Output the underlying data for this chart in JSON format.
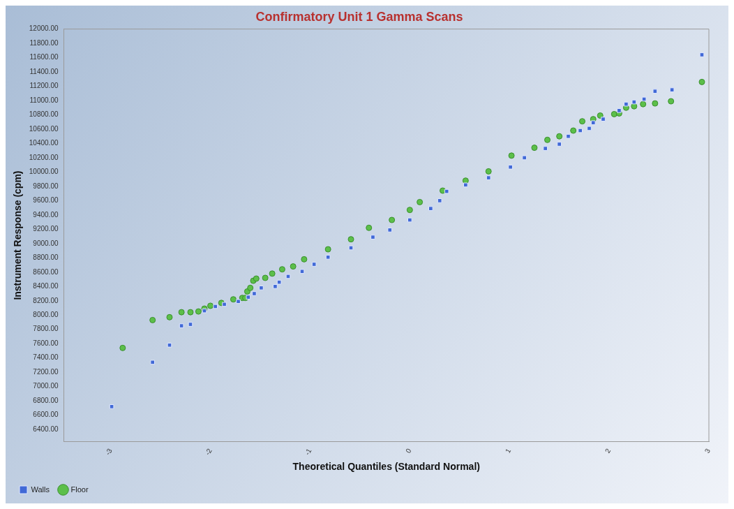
{
  "chart_data": {
    "type": "scatter",
    "title": "Confirmatory Unit 1 Gamma Scans",
    "xlabel": "Theoretical Quantiles (Standard Normal)",
    "ylabel": "Instrument Response (cpm)",
    "legend": "bottom",
    "grid": false,
    "xlim": [
      -3.47,
      3
    ],
    "xticks": [
      -3,
      -2,
      -1,
      0,
      1,
      2,
      3
    ],
    "ylim": [
      6230,
      12000
    ],
    "yticks": [
      {
        "value": 6400,
        "label": "6400.00"
      },
      {
        "value": 6600,
        "label": "6600.00"
      },
      {
        "value": 6800,
        "label": "6800.00"
      },
      {
        "value": 7000,
        "label": "7000.00"
      },
      {
        "value": 7200,
        "label": "7200.00"
      },
      {
        "value": 7400,
        "label": "7400.00"
      },
      {
        "value": 7600,
        "label": "7600.00"
      },
      {
        "value": 7800,
        "label": "7800.00"
      },
      {
        "value": 8000,
        "label": "8000.00"
      },
      {
        "value": 8200,
        "label": "8200.00"
      },
      {
        "value": 8400,
        "label": "8400.00"
      },
      {
        "value": 8600,
        "label": "8600.00"
      },
      {
        "value": 8800,
        "label": "8800.00"
      },
      {
        "value": 9000,
        "label": "9000.00"
      },
      {
        "value": 9200,
        "label": "9200.00"
      },
      {
        "value": 9400,
        "label": "9400.00"
      },
      {
        "value": 9600,
        "label": "9600.00"
      },
      {
        "value": 9800,
        "label": "9800.00"
      },
      {
        "value": 10000,
        "label": "10000.00"
      },
      {
        "value": 10200,
        "label": "10200.00"
      },
      {
        "value": 10400,
        "label": "10400.00"
      },
      {
        "value": 10600,
        "label": "10600.00"
      },
      {
        "value": 10800,
        "label": "10800.00"
      },
      {
        "value": 11000,
        "label": "11000.00"
      },
      {
        "value": 11200,
        "label": "11200.00"
      },
      {
        "value": 11400,
        "label": "11400.00"
      },
      {
        "value": 11600,
        "label": "11600.00"
      },
      {
        "value": 11800,
        "label": "11800.00"
      },
      {
        "value": 12000,
        "label": "12000.00"
      }
    ],
    "series": [
      {
        "name": "Walls",
        "color": "#4169d6",
        "marker": "square",
        "x": [
          -2.99,
          -2.58,
          -2.41,
          -2.29,
          -2.2,
          -2.06,
          -1.95,
          -1.86,
          -1.72,
          -1.62,
          -1.56,
          -1.49,
          -1.35,
          -1.31,
          -1.22,
          -1.08,
          -0.96,
          -0.82,
          -0.59,
          -0.37,
          -0.2,
          0,
          0.21,
          0.3,
          0.37,
          0.56,
          0.79,
          1.01,
          1.15,
          1.36,
          1.5,
          1.59,
          1.71,
          1.8,
          1.84,
          1.94,
          2.1,
          2.17,
          2.25,
          2.35,
          2.46,
          2.63,
          2.93
        ],
        "values": [
          6720,
          7340,
          7580,
          7850,
          7870,
          8060,
          8120,
          8150,
          8190,
          8250,
          8300,
          8380,
          8400,
          8460,
          8540,
          8610,
          8710,
          8810,
          8940,
          9090,
          9190,
          9330,
          9490,
          9600,
          9730,
          9820,
          9920,
          10070,
          10200,
          10330,
          10390,
          10500,
          10580,
          10610,
          10690,
          10740,
          10860,
          10950,
          10980,
          11020,
          11130,
          11150,
          11640
        ]
      },
      {
        "name": "Floor",
        "color": "#5cbf4a",
        "marker": "circle",
        "x": [
          -2.88,
          -2.58,
          -2.41,
          -2.29,
          -2.2,
          -2.12,
          -2.06,
          -2,
          -1.89,
          -1.77,
          -1.68,
          -1.65,
          -1.63,
          -1.6,
          -1.57,
          -1.54,
          -1.45,
          -1.38,
          -1.28,
          -1.17,
          -1.06,
          -0.82,
          -0.59,
          -0.41,
          -0.18,
          0,
          0.1,
          0.33,
          0.56,
          0.79,
          1.02,
          1.25,
          1.38,
          1.5,
          1.64,
          1.73,
          1.84,
          1.91,
          2.05,
          2.1,
          2.17,
          2.25,
          2.34,
          2.46,
          2.62,
          2.93
        ],
        "values": [
          7540,
          7930,
          7970,
          8040,
          8040,
          8050,
          8090,
          8130,
          8170,
          8220,
          8240,
          8240,
          8330,
          8380,
          8480,
          8510,
          8520,
          8580,
          8640,
          8680,
          8780,
          8920,
          9060,
          9220,
          9330,
          9470,
          9580,
          9740,
          9880,
          10010,
          10230,
          10340,
          10450,
          10500,
          10580,
          10710,
          10740,
          10790,
          10810,
          10820,
          10900,
          10920,
          10950,
          10960,
          10990,
          11260
        ]
      }
    ]
  }
}
